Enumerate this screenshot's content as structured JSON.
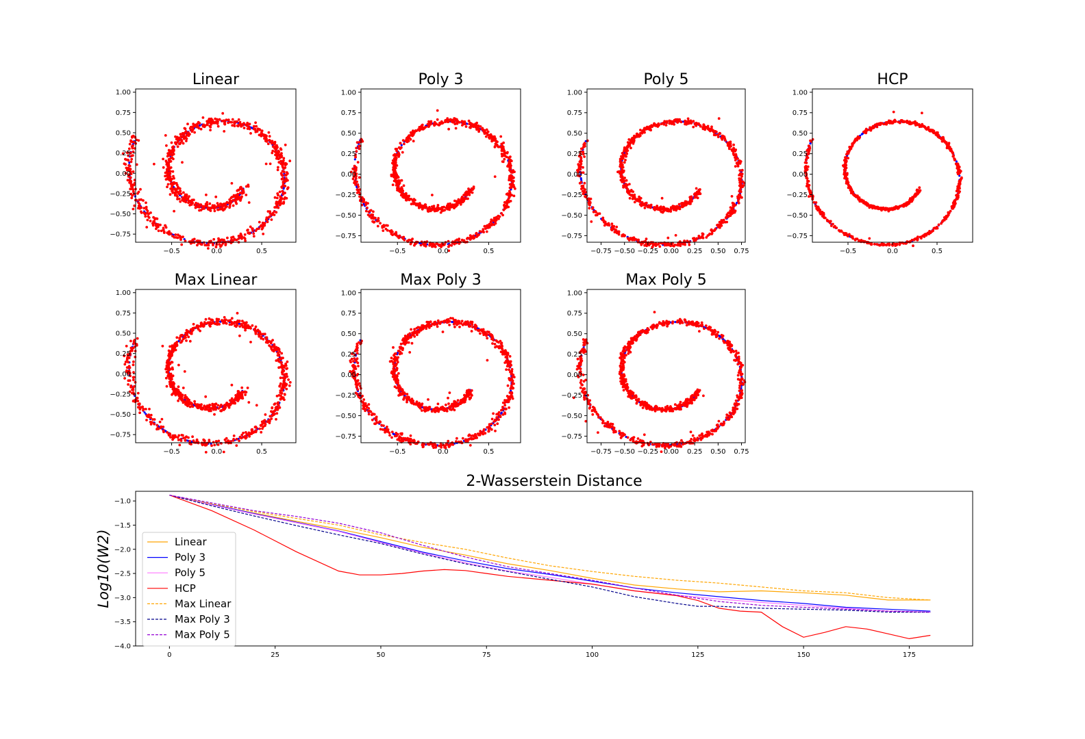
{
  "chart_data": [
    {
      "type": "scatter",
      "title": "Linear",
      "xlim": [
        -0.9,
        0.88
      ],
      "ylim": [
        -0.85,
        1.04
      ],
      "xticks": [
        "−0.5",
        "0.0",
        "0.5"
      ],
      "xtick_values": [
        -0.5,
        0.0,
        0.5
      ],
      "yticks": [
        "−0.75",
        "−0.50",
        "−0.25",
        "0.00",
        "0.25",
        "0.50",
        "0.75",
        "1.00"
      ],
      "ytick_values": [
        -0.75,
        -0.5,
        -0.25,
        0.0,
        0.25,
        0.5,
        0.75,
        1.0
      ],
      "noise": 0.028,
      "outliers": 38,
      "seed": 11
    },
    {
      "type": "scatter",
      "title": "Poly 3",
      "xlim": [
        -0.9,
        0.85
      ],
      "ylim": [
        -0.83,
        1.04
      ],
      "xticks": [
        "−0.5",
        "0.0",
        "0.5"
      ],
      "xtick_values": [
        -0.5,
        0.0,
        0.5
      ],
      "yticks": [
        "−0.75",
        "−0.50",
        "−0.25",
        "0.00",
        "0.25",
        "0.50",
        "0.75",
        "1.00"
      ],
      "ytick_values": [
        -0.75,
        -0.5,
        -0.25,
        0.0,
        0.25,
        0.5,
        0.75,
        1.0
      ],
      "noise": 0.018,
      "outliers": 20,
      "seed": 23
    },
    {
      "type": "scatter",
      "title": "Poly 5",
      "xlim": [
        -0.9,
        0.79
      ],
      "ylim": [
        -0.83,
        1.04
      ],
      "xticks": [
        "−0.75",
        "−0.50",
        "−0.25",
        "0.00",
        "0.25",
        "0.50",
        "0.75"
      ],
      "xtick_values": [
        -0.75,
        -0.5,
        -0.25,
        0.0,
        0.25,
        0.5,
        0.75
      ],
      "yticks": [
        "−0.75",
        "−0.50",
        "−0.25",
        "0.00",
        "0.25",
        "0.50",
        "0.75",
        "1.00"
      ],
      "ytick_values": [
        -0.75,
        -0.5,
        -0.25,
        0.0,
        0.25,
        0.5,
        0.75,
        1.0
      ],
      "noise": 0.016,
      "outliers": 12,
      "seed": 37
    },
    {
      "type": "scatter",
      "title": "HCP",
      "xlim": [
        -0.9,
        0.9
      ],
      "ylim": [
        -0.83,
        1.04
      ],
      "xticks": [
        "−0.5",
        "0.0",
        "0.5"
      ],
      "xtick_values": [
        -0.5,
        0.0,
        0.5
      ],
      "yticks": [
        "−0.75",
        "−0.50",
        "−0.25",
        "0.00",
        "0.25",
        "0.50",
        "0.75",
        "1.00"
      ],
      "ytick_values": [
        -0.75,
        -0.5,
        -0.25,
        0.0,
        0.25,
        0.5,
        0.75,
        1.0
      ],
      "noise": 0.009,
      "outliers": 5,
      "seed": 41
    },
    {
      "type": "scatter",
      "title": "Max Linear",
      "xlim": [
        -0.9,
        0.88
      ],
      "ylim": [
        -0.85,
        1.04
      ],
      "xticks": [
        "−0.5",
        "0.0",
        "0.5"
      ],
      "xtick_values": [
        -0.5,
        0.0,
        0.5
      ],
      "yticks": [
        "−0.75",
        "−0.50",
        "−0.25",
        "0.00",
        "0.25",
        "0.50",
        "0.75",
        "1.00"
      ],
      "ytick_values": [
        -0.75,
        -0.5,
        -0.25,
        0.0,
        0.25,
        0.5,
        0.75,
        1.0
      ],
      "noise": 0.024,
      "outliers": 28,
      "seed": 53
    },
    {
      "type": "scatter",
      "title": "Max Poly 3",
      "xlim": [
        -0.9,
        0.85
      ],
      "ylim": [
        -0.83,
        1.04
      ],
      "xticks": [
        "−0.5",
        "0.0",
        "0.5"
      ],
      "xtick_values": [
        -0.5,
        0.0,
        0.5
      ],
      "yticks": [
        "−0.75",
        "−0.50",
        "−0.25",
        "0.00",
        "0.25",
        "0.50",
        "0.75",
        "1.00"
      ],
      "ytick_values": [
        -0.75,
        -0.5,
        -0.25,
        0.0,
        0.25,
        0.5,
        0.75,
        1.0
      ],
      "noise": 0.02,
      "outliers": 22,
      "seed": 67
    },
    {
      "type": "scatter",
      "title": "Max Poly 5",
      "xlim": [
        -0.9,
        0.79
      ],
      "ylim": [
        -0.83,
        1.04
      ],
      "xticks": [
        "−0.75",
        "−0.50",
        "−0.25",
        "0.00",
        "0.25",
        "0.50",
        "0.75"
      ],
      "xtick_values": [
        -0.75,
        -0.5,
        -0.25,
        0.0,
        0.25,
        0.5,
        0.75
      ],
      "yticks": [
        "−0.75",
        "−0.50",
        "−0.25",
        "0.00",
        "0.25",
        "0.50",
        "0.75",
        "1.00"
      ],
      "ytick_values": [
        -0.75,
        -0.5,
        -0.25,
        0.0,
        0.25,
        0.5,
        0.75,
        1.0
      ],
      "noise": 0.017,
      "outliers": 14,
      "seed": 79
    },
    {
      "type": "line",
      "title": "2-Wasserstein Distance",
      "ylabel": "Log10(W2)",
      "xlim": [
        -8,
        190
      ],
      "ylim": [
        -4.0,
        -0.8
      ],
      "xticks": [
        "0",
        "25",
        "50",
        "75",
        "100",
        "125",
        "150",
        "175"
      ],
      "xtick_values": [
        0,
        25,
        50,
        75,
        100,
        125,
        150,
        175
      ],
      "yticks": [
        "−1.0",
        "−1.5",
        "−2.0",
        "−2.5",
        "−3.0",
        "−3.5",
        "−4.0"
      ],
      "ytick_values": [
        -1.0,
        -1.5,
        -2.0,
        -2.5,
        -3.0,
        -3.5,
        -4.0
      ],
      "legend_position": "center-left",
      "series": [
        {
          "name": "Linear",
          "color": "#ffa500",
          "dash": "solid",
          "x": [
            0,
            10,
            20,
            30,
            40,
            50,
            60,
            70,
            80,
            90,
            100,
            110,
            120,
            130,
            140,
            150,
            160,
            170,
            180
          ],
          "y": [
            -0.88,
            -1.08,
            -1.25,
            -1.42,
            -1.58,
            -1.76,
            -1.96,
            -2.12,
            -2.3,
            -2.44,
            -2.6,
            -2.74,
            -2.82,
            -2.88,
            -2.86,
            -2.9,
            -2.95,
            -3.05,
            -3.05
          ]
        },
        {
          "name": "Poly 3",
          "color": "#0000ff",
          "dash": "solid",
          "x": [
            0,
            10,
            20,
            30,
            40,
            50,
            60,
            70,
            80,
            90,
            100,
            110,
            120,
            130,
            140,
            150,
            160,
            170,
            180
          ],
          "y": [
            -0.88,
            -1.07,
            -1.26,
            -1.44,
            -1.62,
            -1.84,
            -2.06,
            -2.24,
            -2.4,
            -2.52,
            -2.66,
            -2.8,
            -2.9,
            -2.98,
            -3.06,
            -3.12,
            -3.2,
            -3.24,
            -3.28
          ]
        },
        {
          "name": "Poly 5",
          "color": "#ff77ff",
          "dash": "solid",
          "x": [
            0,
            10,
            20,
            30,
            40,
            50,
            60,
            70,
            80,
            90,
            100,
            110,
            120,
            130,
            140,
            150,
            160,
            170,
            180
          ],
          "y": [
            -0.88,
            -1.08,
            -1.27,
            -1.45,
            -1.63,
            -1.86,
            -2.08,
            -2.28,
            -2.45,
            -2.58,
            -2.72,
            -2.86,
            -2.95,
            -3.03,
            -3.1,
            -3.16,
            -3.22,
            -3.28,
            -3.3
          ]
        },
        {
          "name": "HCP",
          "color": "#ff0000",
          "dash": "solid",
          "x": [
            0,
            10,
            20,
            30,
            40,
            45,
            50,
            55,
            60,
            65,
            70,
            75,
            80,
            90,
            100,
            110,
            120,
            125,
            130,
            135,
            140,
            145,
            150,
            155,
            160,
            165,
            170,
            175,
            180
          ],
          "y": [
            -0.88,
            -1.2,
            -1.6,
            -2.05,
            -2.45,
            -2.53,
            -2.53,
            -2.5,
            -2.45,
            -2.42,
            -2.44,
            -2.5,
            -2.56,
            -2.64,
            -2.72,
            -2.86,
            -2.96,
            -3.06,
            -3.22,
            -3.28,
            -3.3,
            -3.6,
            -3.82,
            -3.72,
            -3.6,
            -3.65,
            -3.75,
            -3.85,
            -3.78
          ]
        },
        {
          "name": "Max Linear",
          "color": "#ffa500",
          "dash": "dashed",
          "x": [
            0,
            10,
            20,
            30,
            40,
            50,
            60,
            70,
            80,
            90,
            100,
            110,
            120,
            130,
            140,
            150,
            160,
            170,
            180
          ],
          "y": [
            -0.88,
            -1.06,
            -1.22,
            -1.36,
            -1.5,
            -1.7,
            -1.86,
            -2.0,
            -2.18,
            -2.34,
            -2.46,
            -2.56,
            -2.64,
            -2.7,
            -2.78,
            -2.86,
            -2.9,
            -3.0,
            -3.05
          ]
        },
        {
          "name": "Max Poly 3",
          "color": "#00008b",
          "dash": "dashed",
          "x": [
            0,
            10,
            20,
            30,
            40,
            50,
            60,
            70,
            80,
            90,
            100,
            110,
            120,
            125,
            130,
            140,
            150,
            160,
            170,
            180
          ],
          "y": [
            -0.88,
            -1.1,
            -1.31,
            -1.51,
            -1.7,
            -1.88,
            -2.1,
            -2.3,
            -2.46,
            -2.62,
            -2.78,
            -2.98,
            -3.12,
            -3.18,
            -3.18,
            -3.22,
            -3.24,
            -3.26,
            -3.3,
            -3.3
          ]
        },
        {
          "name": "Max Poly 5",
          "color": "#9400d3",
          "dash": "dashed",
          "x": [
            0,
            10,
            20,
            30,
            40,
            50,
            60,
            70,
            80,
            90,
            100,
            110,
            120,
            130,
            140,
            150,
            160,
            170,
            180
          ],
          "y": [
            -0.88,
            -1.04,
            -1.2,
            -1.32,
            -1.46,
            -1.66,
            -1.92,
            -2.16,
            -2.36,
            -2.5,
            -2.64,
            -2.8,
            -2.95,
            -3.08,
            -3.16,
            -3.2,
            -3.24,
            -3.28,
            -3.3
          ]
        }
      ]
    }
  ],
  "colors": {
    "samples": "#ff0000",
    "target": "#0000ff"
  }
}
